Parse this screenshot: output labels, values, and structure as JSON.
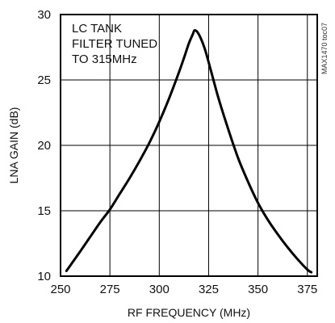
{
  "chart_data": {
    "type": "line",
    "xlabel": "RF FREQUENCY (MHz)",
    "ylabel": "LNA GAIN (dB)",
    "xlim": [
      250,
      380
    ],
    "ylim": [
      10,
      30
    ],
    "xticks": [
      250,
      275,
      300,
      325,
      350,
      375
    ],
    "yticks": [
      10,
      15,
      20,
      25,
      30
    ],
    "grid": true,
    "annotation": [
      "LC TANK",
      "FILTER TUNED",
      "TO 315MHz"
    ],
    "side_label": "MAX1470 toc07",
    "series": [
      {
        "x": [
          253,
          260,
          265,
          270,
          275,
          280,
          285,
          290,
          295,
          300,
          305,
          310,
          313,
          315,
          317,
          318,
          320,
          323,
          326,
          330,
          335,
          340,
          345,
          350,
          355,
          360,
          365,
          370,
          375,
          377
        ],
        "y": [
          10.4,
          11.9,
          13.0,
          14.1,
          15.1,
          16.3,
          17.5,
          18.8,
          20.2,
          21.8,
          23.6,
          25.6,
          26.9,
          27.8,
          28.5,
          28.8,
          28.5,
          27.4,
          25.8,
          23.6,
          21.2,
          19.0,
          17.2,
          15.6,
          14.3,
          13.2,
          12.2,
          11.3,
          10.5,
          10.3
        ]
      }
    ]
  }
}
